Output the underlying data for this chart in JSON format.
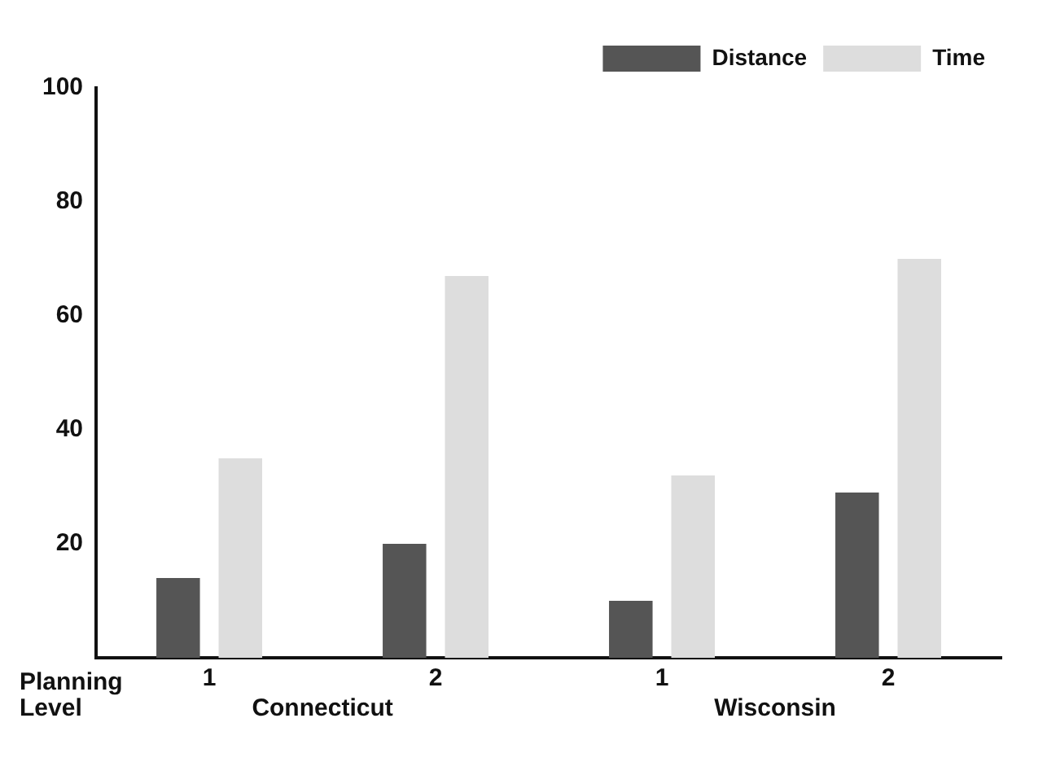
{
  "chart_data": {
    "type": "bar",
    "xlabel": "Planning Level",
    "categories": [
      "1",
      "2",
      "1",
      "2"
    ],
    "series": [
      {
        "name": "Distance",
        "color": "#555555",
        "values": [
          14,
          20,
          10,
          29
        ]
      },
      {
        "name": "Time",
        "color": "#dddddd",
        "values": [
          35,
          67,
          32,
          70
        ]
      }
    ],
    "ylim": [
      0,
      100
    ],
    "yticks": [
      20,
      40,
      60,
      80,
      100
    ],
    "grid": false,
    "legend": "top right",
    "annotations": [
      "Connecticut",
      "Wisconsin"
    ]
  }
}
